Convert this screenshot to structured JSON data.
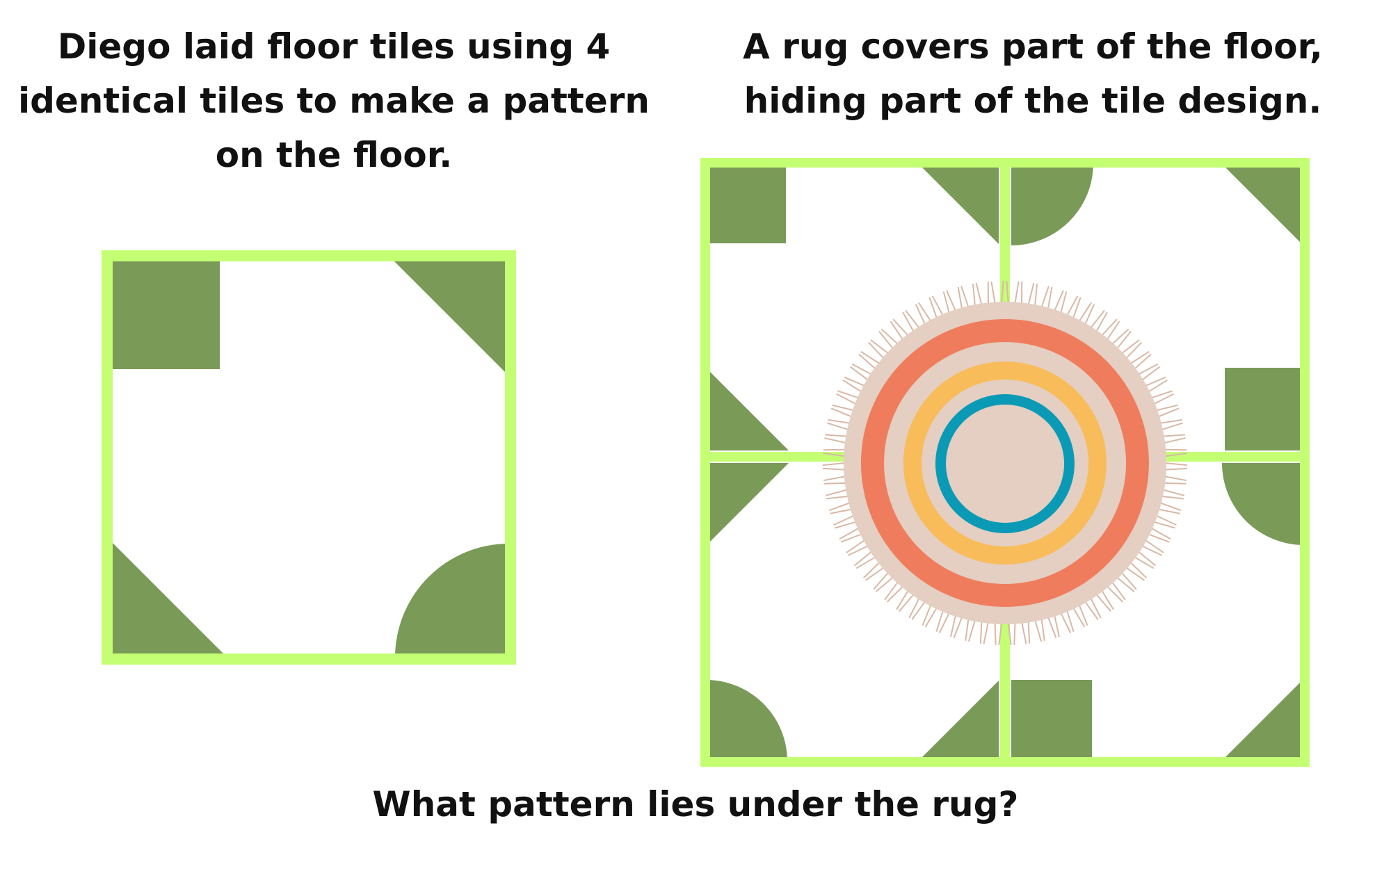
{
  "captions": {
    "left": "Diego laid floor tiles using 4 identical tiles to make a pattern on the floor.",
    "right": "A rug covers part of the floor, hiding part of the tile design.",
    "question": "What pattern lies under the rug?"
  },
  "single_tile": {
    "corners": {
      "top_left": "square",
      "top_right": "triangle",
      "bottom_left": "triangle",
      "bottom_right": "quarter-circle"
    }
  },
  "floor": {
    "tile_count": 4,
    "hidden_region": "center",
    "rug_rings": [
      "beige",
      "coral",
      "beige",
      "yellow",
      "teal",
      "beige"
    ]
  },
  "colors": {
    "tile_border": "#C4FF73",
    "shape_fill": "#7A9A58",
    "tile_background": "#FFFFFF",
    "rug_base": "#E4CFC2",
    "rug_coral": "#EF7D5D",
    "rug_yellow": "#F8BC5A",
    "rug_teal": "#0A9AB6",
    "rug_fringe": "#D9B8A6",
    "text": "#111111"
  }
}
